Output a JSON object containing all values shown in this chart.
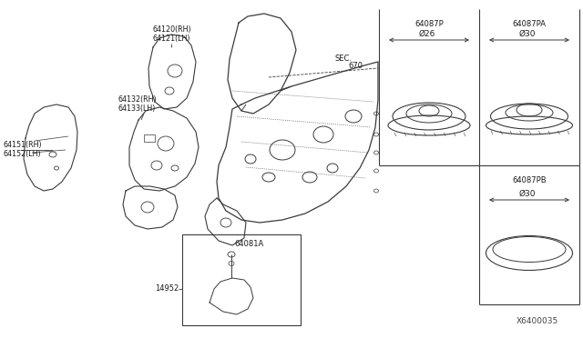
{
  "bg_color": "#ffffff",
  "line_color": "#3a3a3a",
  "text_color": "#1a1a1a",
  "fig_width": 6.4,
  "fig_height": 3.72,
  "dpi": 100,
  "diagram_id": "X6400035",
  "labels": {
    "l64120rh": "64120(RH)",
    "l64121lh": "64121(LH)",
    "l64132rh": "64132(RH)",
    "l64133lh": "64133(LH)",
    "l64151rh": "64151(RH)",
    "l64152lh": "64152(LH)",
    "sec670": "SEC. 670",
    "l64081a": "64081A",
    "l14952": "14952",
    "l64087p": "64087P",
    "l64087pa": "64087PA",
    "l64087pb": "64087PB",
    "d26": "Ø26",
    "d30a": "Ø30",
    "d30b": "Ø30"
  }
}
